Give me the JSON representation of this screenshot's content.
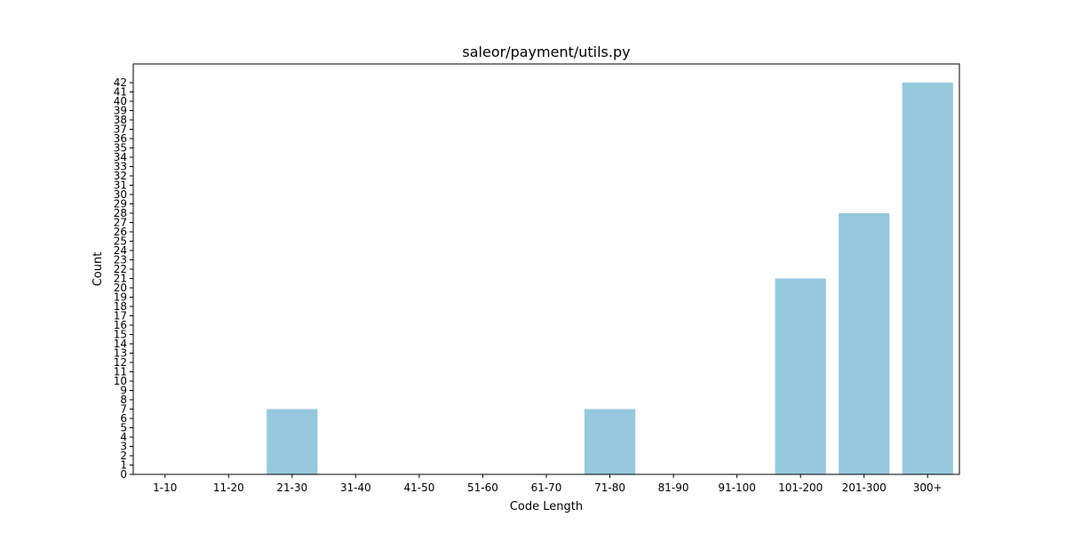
{
  "chart_data": {
    "type": "bar",
    "title": "saleor/payment/utils.py",
    "xlabel": "Code Length",
    "ylabel": "Count",
    "categories": [
      "1-10",
      "11-20",
      "21-30",
      "31-40",
      "41-50",
      "51-60",
      "61-70",
      "71-80",
      "81-90",
      "91-100",
      "101-200",
      "201-300",
      "300+"
    ],
    "values": [
      0,
      0,
      7,
      0,
      0,
      0,
      0,
      7,
      0,
      0,
      21,
      28,
      42
    ],
    "ylim": [
      0,
      44
    ],
    "yticks": [
      0,
      1,
      2,
      3,
      4,
      5,
      6,
      7,
      8,
      9,
      10,
      11,
      12,
      13,
      14,
      15,
      16,
      17,
      18,
      19,
      20,
      21,
      22,
      23,
      24,
      25,
      26,
      27,
      28,
      29,
      30,
      31,
      32,
      33,
      34,
      35,
      36,
      37,
      38,
      39,
      40,
      41,
      42
    ],
    "bar_color": "#96c9de",
    "grid": false,
    "legend": "none"
  }
}
